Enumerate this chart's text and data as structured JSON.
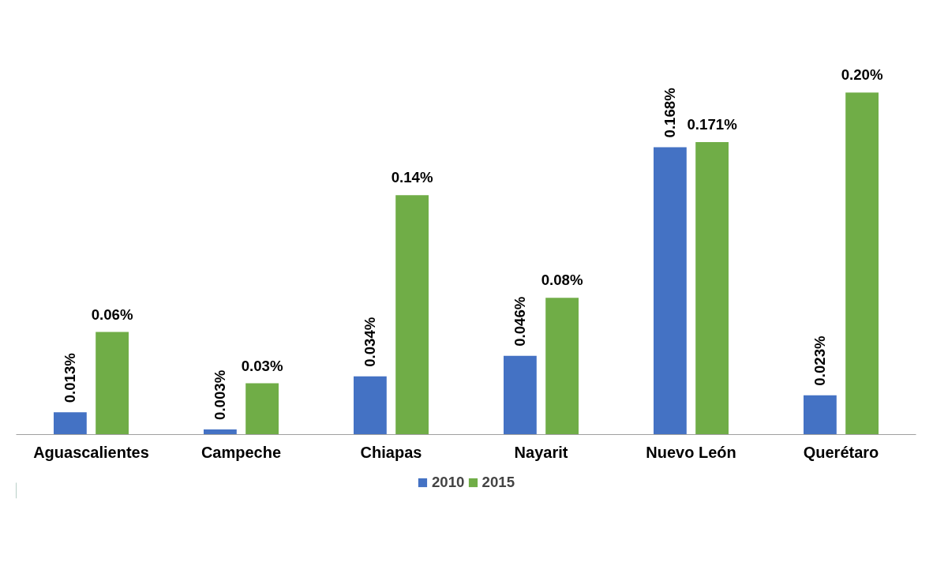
{
  "chart_data": {
    "type": "bar",
    "categories": [
      "Aguascalientes",
      "Campeche",
      "Chiapas",
      "Nayarit",
      "Nuevo León",
      "Querétaro"
    ],
    "series": [
      {
        "name": "2010",
        "color": "#4472c4",
        "values": [
          0.013,
          0.003,
          0.034,
          0.046,
          0.168,
          0.023
        ],
        "value_labels": [
          "0.013%",
          "0.003%",
          "0.034%",
          "0.046%",
          "0.168%",
          "0.023%"
        ]
      },
      {
        "name": "2015",
        "color": "#70ad47",
        "values": [
          0.06,
          0.03,
          0.14,
          0.08,
          0.171,
          0.2
        ],
        "value_labels": [
          "0.06%",
          "0.03%",
          "0.14%",
          "0.08%",
          "0.171%",
          "0.20%"
        ]
      }
    ],
    "legend": "bottom",
    "grid": false
  }
}
